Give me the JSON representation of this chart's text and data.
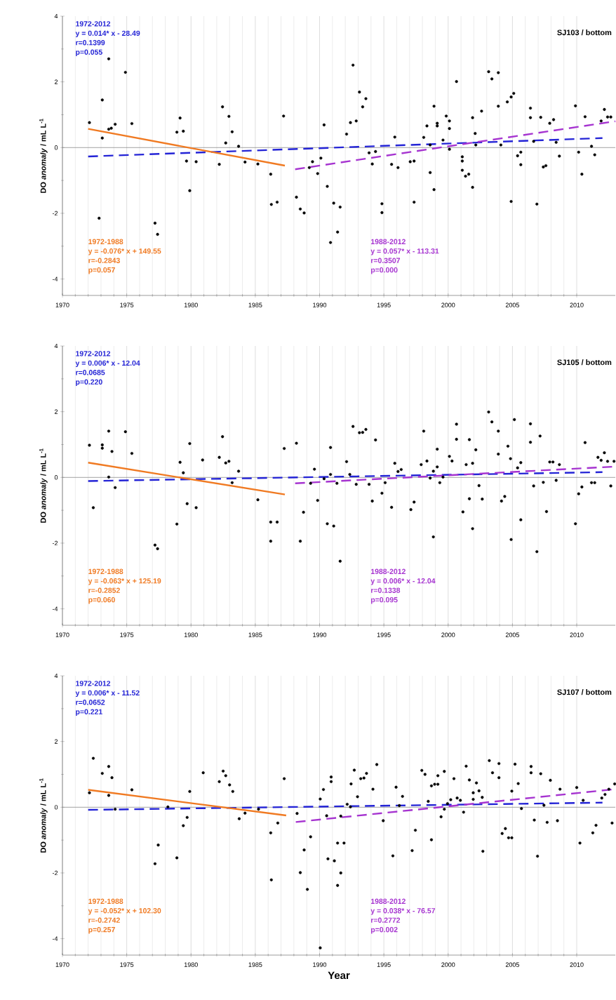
{
  "chart_data": [
    {
      "type": "scatter",
      "title": "SJ103 / bottom",
      "ylabel": "DO *anomaly* / mL L$^{-1}$",
      "xlim": [
        1970,
        2013
      ],
      "ylim": [
        -4.5,
        4
      ],
      "xticks": [
        1970,
        1975,
        1980,
        1985,
        1990,
        1995,
        2000,
        2005,
        2010
      ],
      "yticks": [
        -4,
        -2,
        0,
        2,
        4
      ],
      "grid": "x",
      "ref_lines": [
        {
          "axis": "y",
          "value": 0,
          "color": "#8c8c8c"
        }
      ],
      "annotations": [
        "y = 0.014* x - 28.49",
        "r=0.1399",
        "p=0.055",
        "y = -0.076* x + 149.55",
        "r=-0.2843",
        "p=0.057",
        "y = 0.057* x - 113.31",
        "r=0.3507",
        "p=0.000"
      ],
      "series": [
        {
          "color": "#000000",
          "marker": "circle",
          "x": [
            1972.1,
            1972.85,
            1973.1,
            1973.1,
            1973.6,
            1973.6,
            1973.8,
            1974.1,
            1974.9,
            1975.4,
            1977.2,
            1977.4,
            1978.9,
            1979.15,
            1979.4,
            1979.65,
            1979.9,
            1980.4,
            1982.2,
            1982.45,
            1982.7,
            1982.95,
            1983.2,
            1983.7,
            1984.2,
            1985.2,
            1986.2,
            1986.25,
            1986.7,
            1987.2,
            1988.2,
            1988.5,
            1988.8,
            1989.2,
            1989.45,
            1989.85,
            1990.1,
            1990.35,
            1990.6,
            1990.85,
            1991.1,
            1991.4,
            1991.6,
            1992.1,
            1992.4,
            1992.6,
            1992.85,
            1993.1,
            1993.35,
            1993.6,
            1993.85,
            1994.1,
            1994.35,
            1994.85,
            1994.85,
            1995.6,
            1995.85,
            1996.1,
            1997.05,
            1997.35,
            1997.35,
            1998.1,
            1998.35,
            1998.6,
            1998.6,
            1998.9,
            1998.9,
            1999.15,
            1999.15,
            1999.6,
            1999.85,
            2000.1,
            2000.1,
            2000.1,
            2000.65,
            2001.1,
            2001.1,
            2001.1,
            2001.35,
            2001.6,
            2001.9,
            2001.9,
            2002.1,
            2002.15,
            2002.6,
            2003.15,
            2003.4,
            2003.9,
            2003.9,
            2004.1,
            2004.6,
            2004.9,
            2005.1,
            2004.9,
            2005.4,
            2005.65,
            2005.65,
            2006.4,
            2006.4,
            2006.65,
            2006.9,
            2007.2,
            2007.4,
            2007.6,
            2007.9,
            2008.2,
            2008.4,
            2008.65,
            2009.9,
            2010.15,
            2010.4,
            2010.65,
            2011.15,
            2011.4,
            2011.9,
            2012.15,
            2012.4,
            2012.65
          ],
          "values": [
            0.76,
            -2.15,
            1.45,
            0.29,
            0.56,
            2.7,
            0.59,
            0.71,
            2.29,
            0.73,
            -2.3,
            -2.64,
            0.47,
            0.9,
            0.5,
            -0.41,
            -1.31,
            -0.43,
            -0.51,
            1.24,
            0.14,
            0.95,
            0.48,
            0.04,
            -0.44,
            -0.5,
            -0.81,
            -1.73,
            -1.66,
            0.96,
            -1.51,
            -1.87,
            -1.99,
            -0.61,
            -0.43,
            -0.79,
            -0.32,
            0.69,
            -1.18,
            -2.89,
            -1.69,
            -2.57,
            -1.81,
            0.41,
            0.76,
            2.51,
            0.81,
            1.69,
            1.24,
            1.49,
            -0.16,
            -0.5,
            -0.12,
            -1.71,
            -1.98,
            -0.51,
            0.32,
            -0.61,
            -0.43,
            -0.41,
            -1.66,
            0.31,
            0.66,
            0.08,
            -0.76,
            1.26,
            -1.28,
            0.74,
            0.66,
            0.23,
            0.96,
            0.81,
            0.58,
            -0.05,
            2.01,
            -0.28,
            -0.41,
            -0.69,
            -0.87,
            -0.81,
            -1.21,
            0.91,
            0.43,
            0.08,
            1.11,
            2.31,
            2.09,
            2.28,
            1.26,
            0.08,
            1.39,
            1.54,
            1.65,
            -1.64,
            -0.25,
            -0.14,
            -0.52,
            1.2,
            0.91,
            0.19,
            -1.72,
            0.92,
            -0.59,
            -0.55,
            0.74,
            0.85,
            0.16,
            -0.26,
            1.27,
            -0.14,
            -0.81,
            0.94,
            0.04,
            -0.22,
            0.81,
            1.16,
            0.93,
            0.93
          ]
        },
        {
          "type": "line",
          "name": "1972-2012",
          "color": "#2424d6",
          "line_style": "dashed",
          "x": [
            1972,
            2012
          ],
          "values": [
            -0.27,
            0.29
          ]
        },
        {
          "type": "line",
          "name": "1972-1988",
          "color": "#f07a22",
          "line_style": "solid",
          "x": [
            1972,
            1987.3
          ],
          "values": [
            0.57,
            -0.55
          ]
        },
        {
          "type": "line",
          "name": "1988-2012",
          "color": "#a634d0",
          "line_style": "dashed",
          "x": [
            1988.1,
            2013
          ],
          "values": [
            -0.66,
            0.8
          ]
        }
      ]
    },
    {
      "type": "scatter",
      "title": "SJ105 / bottom",
      "ylabel": "DO *anomaly* / mL L$^{-1}$",
      "xlim": [
        1970,
        2013
      ],
      "ylim": [
        -4.5,
        4
      ],
      "xticks": [
        1970,
        1975,
        1980,
        1985,
        1990,
        1995,
        2000,
        2005,
        2010
      ],
      "yticks": [
        -4,
        -2,
        0,
        2,
        4
      ],
      "grid": "x",
      "ref_lines": [
        {
          "axis": "y",
          "value": 0,
          "color": "#8c8c8c"
        }
      ],
      "annotations": [
        "y = 0.006* x - 12.04",
        "r=0.0685",
        "p=0.220",
        "y = -0.063* x + 125.19",
        "r=-0.2852",
        "p=0.060",
        "y = 0.006* x - 12.04",
        "r=0.1338",
        "p=0.095"
      ],
      "series": [
        {
          "color": "#000000",
          "marker": "circle",
          "x": [
            1972.1,
            1972.4,
            1973.1,
            1973.1,
            1973.6,
            1973.85,
            1973.6,
            1974.1,
            1974.9,
            1975.4,
            1977.2,
            1977.4,
            1978.9,
            1979.15,
            1979.4,
            1979.7,
            1979.9,
            1980.4,
            1980.9,
            1982.2,
            1982.45,
            1982.7,
            1982.95,
            1983.2,
            1983.7,
            1985.2,
            1986.2,
            1986.7,
            1986.2,
            1987.25,
            1988.2,
            1988.5,
            1988.75,
            1989.3,
            1989.6,
            1989.85,
            1990.35,
            1990.6,
            1990.85,
            1990.85,
            1991.1,
            1991.35,
            1991.6,
            1992.1,
            1992.35,
            1992.6,
            1992.85,
            1993.1,
            1993.35,
            1993.6,
            1993.85,
            1994.1,
            1994.35,
            1994.85,
            1995.1,
            1995.6,
            1995.85,
            1996.1,
            1996.35,
            1997.1,
            1997.35,
            1997.9,
            1998.1,
            1998.35,
            1998.6,
            1998.85,
            1998.85,
            1999.15,
            1999.15,
            1999.35,
            1999.6,
            2000.1,
            2000.3,
            2000.65,
            2000.65,
            2001.15,
            2001.4,
            2001.65,
            2001.65,
            2001.9,
            2001.9,
            2002.15,
            2002.4,
            2002.65,
            2003.15,
            2003.4,
            2003.9,
            2003.9,
            2004.15,
            2004.4,
            2004.65,
            2004.85,
            2004.9,
            2005.15,
            2005.4,
            2005.65,
            2005.65,
            2006.4,
            2006.4,
            2006.65,
            2006.9,
            2007.15,
            2007.4,
            2007.65,
            2007.9,
            2008.15,
            2008.4,
            2008.65,
            2009.9,
            2010.15,
            2010.4,
            2010.65,
            2011.15,
            2011.4,
            2011.65,
            2011.9,
            2012.15,
            2012.4,
            2012.65,
            2012.9
          ],
          "values": [
            0.98,
            -0.92,
            0.99,
            0.89,
            1.41,
            0.79,
            0.01,
            -0.31,
            1.39,
            0.73,
            -2.06,
            -2.17,
            -1.42,
            0.46,
            0.14,
            -0.8,
            1.03,
            -0.92,
            0.53,
            0.61,
            1.24,
            0.44,
            0.49,
            -0.16,
            0.19,
            -0.68,
            -1.36,
            -1.36,
            -1.94,
            0.88,
            1.04,
            -1.94,
            -1.06,
            -0.18,
            0.25,
            -0.7,
            -0.04,
            -1.41,
            0.91,
            0.09,
            -1.48,
            -0.18,
            -2.55,
            0.48,
            0.09,
            1.55,
            -0.21,
            1.36,
            1.37,
            1.46,
            -0.21,
            -0.72,
            1.14,
            -0.48,
            -0.16,
            -0.91,
            0.43,
            0.18,
            0.24,
            -0.98,
            -0.75,
            0.39,
            1.41,
            0.5,
            -0.02,
            0.19,
            -1.81,
            0.86,
            0.32,
            -0.16,
            0.01,
            0.64,
            0.5,
            1.62,
            1.16,
            -1.05,
            0.39,
            1.15,
            -0.65,
            0.43,
            -1.56,
            0.84,
            -0.25,
            -0.66,
            1.99,
            1.69,
            1.41,
            0.71,
            -0.72,
            -0.58,
            0.95,
            0.57,
            -1.89,
            1.76,
            0.29,
            0.45,
            -1.29,
            1.63,
            1.07,
            -0.26,
            -2.26,
            1.26,
            -0.15,
            -1.04,
            0.47,
            0.47,
            -0.09,
            0.39,
            -1.41,
            -0.5,
            -0.29,
            1.06,
            -0.16,
            -0.16,
            0.61,
            0.52,
            0.75,
            0.49,
            -0.26,
            0.49
          ]
        },
        {
          "type": "line",
          "name": "1972-2012",
          "color": "#2424d6",
          "line_style": "dashed",
          "x": [
            1972,
            2012
          ],
          "values": [
            -0.11,
            0.16
          ]
        },
        {
          "type": "line",
          "name": "1972-1988",
          "color": "#f07a22",
          "line_style": "solid",
          "x": [
            1972,
            1987.3
          ],
          "values": [
            0.45,
            -0.52
          ]
        },
        {
          "type": "line",
          "name": "1988-2012",
          "color": "#a634d0",
          "line_style": "dashed",
          "x": [
            1988.1,
            2013
          ],
          "values": [
            -0.18,
            0.33
          ]
        }
      ]
    },
    {
      "type": "scatter",
      "title": "SJ107 / bottom",
      "xlabel": "Year",
      "ylabel": "DO *anomaly* / mL L$^{-1}$",
      "xlim": [
        1970,
        2013
      ],
      "ylim": [
        -4.5,
        4
      ],
      "xticks": [
        1970,
        1975,
        1980,
        1985,
        1990,
        1995,
        2000,
        2005,
        2010
      ],
      "yticks": [
        -4,
        -2,
        0,
        2,
        4
      ],
      "grid": "x",
      "ref_lines": [
        {
          "axis": "y",
          "value": 0,
          "color": "#8c8c8c"
        }
      ],
      "annotations": [
        "y = 0.006* x - 11.52",
        "r=0.0652",
        "p=0.221",
        "y = -0.052* x + 102.30",
        "r=-0.2742",
        "p=0.257",
        "y = 0.038* x - 76.57",
        "r=0.2772",
        "p=0.002"
      ],
      "series": [
        {
          "color": "#000000",
          "marker": "circle",
          "x": [
            1972.1,
            1972.4,
            1973.1,
            1973.6,
            1973.6,
            1973.85,
            1974.1,
            1975.4,
            1977.2,
            1977.45,
            1978.2,
            1978.9,
            1979.4,
            1979.7,
            1979.9,
            1980.95,
            1982.2,
            1982.5,
            1982.7,
            1983.0,
            1983.25,
            1983.75,
            1984.2,
            1985.25,
            1986.2,
            1986.25,
            1986.75,
            1987.25,
            1988.25,
            1988.5,
            1988.8,
            1989.05,
            1989.3,
            1990.05,
            1990.05,
            1990.3,
            1990.55,
            1990.65,
            1990.9,
            1990.9,
            1991.15,
            1991.4,
            1991.4,
            1991.65,
            1991.65,
            1991.9,
            1992.15,
            1992.4,
            1992.45,
            1992.7,
            1992.95,
            1993.2,
            1993.45,
            1993.65,
            1994.15,
            1994.45,
            1994.95,
            1995.7,
            1995.95,
            1996.2,
            1996.45,
            1997.2,
            1997.45,
            1997.95,
            1998.2,
            1998.45,
            1998.7,
            1998.7,
            1998.95,
            1999.2,
            1999.2,
            1999.45,
            1999.7,
            1999.7,
            1999.95,
            2000.2,
            2000.45,
            2000.7,
            2000.95,
            2001.2,
            2001.4,
            2001.65,
            2001.95,
            2001.95,
            2002.2,
            2002.4,
            2002.65,
            2002.7,
            2003.2,
            2003.45,
            2003.95,
            2003.95,
            2004.2,
            2004.45,
            2004.7,
            2004.95,
            2004.95,
            2005.2,
            2005.45,
            2005.7,
            2006.45,
            2006.45,
            2006.7,
            2006.95,
            2007.2,
            2007.45,
            2007.7,
            2007.95,
            2008.5,
            2008.7,
            2010.0,
            2010.25,
            2010.5,
            2011.25,
            2011.5,
            2011.95,
            2012.2,
            2012.5,
            2012.75,
            2012.95
          ],
          "values": [
            0.44,
            1.49,
            1.03,
            1.24,
            0.36,
            0.9,
            -0.06,
            0.53,
            -1.72,
            -1.15,
            0.01,
            -1.54,
            -0.56,
            -0.31,
            0.48,
            1.05,
            0.78,
            1.1,
            0.96,
            0.68,
            0.48,
            -0.35,
            -0.18,
            -0.06,
            -0.78,
            -2.21,
            -0.48,
            0.87,
            -0.19,
            -1.99,
            -1.3,
            -2.5,
            -0.9,
            0.25,
            -4.28,
            0.54,
            -0.26,
            -1.57,
            0.92,
            0.78,
            -1.63,
            -1.09,
            -2.38,
            -2.0,
            -0.27,
            -1.09,
            0.09,
            0.01,
            0.71,
            1.13,
            0.32,
            0.87,
            0.89,
            1.03,
            0.55,
            1.3,
            -0.41,
            -1.48,
            0.61,
            0.05,
            0.33,
            -1.32,
            -0.7,
            1.12,
            1.0,
            0.18,
            -0.99,
            0.65,
            0.7,
            0.7,
            0.96,
            -0.29,
            1.09,
            -0.06,
            0.11,
            0.23,
            0.87,
            0.28,
            0.21,
            -0.15,
            1.25,
            0.83,
            0.24,
            0.44,
            0.74,
            0.5,
            0.3,
            -1.34,
            1.42,
            1.05,
            1.33,
            0.9,
            -0.8,
            -0.65,
            -0.93,
            -0.93,
            0.49,
            1.31,
            0.72,
            -0.04,
            1.24,
            1.05,
            -0.39,
            -1.49,
            1.02,
            0.06,
            -0.46,
            0.82,
            -0.41,
            0.55,
            0.6,
            -1.09,
            0.21,
            -0.78,
            -0.55,
            0.28,
            0.39,
            0.55,
            -0.48,
            0.71
          ]
        },
        {
          "type": "line",
          "name": "1972-2012",
          "color": "#2424d6",
          "line_style": "dashed",
          "x": [
            1972,
            2012
          ],
          "values": [
            -0.08,
            0.14
          ]
        },
        {
          "type": "line",
          "name": "1972-1988",
          "color": "#f07a22",
          "line_style": "solid",
          "x": [
            1972,
            1987.4
          ],
          "values": [
            0.53,
            -0.25
          ]
        },
        {
          "type": "line",
          "name": "1988-2012",
          "color": "#a634d0",
          "line_style": "dashed",
          "x": [
            1988.15,
            2013
          ],
          "values": [
            -0.45,
            0.55
          ]
        }
      ]
    }
  ]
}
